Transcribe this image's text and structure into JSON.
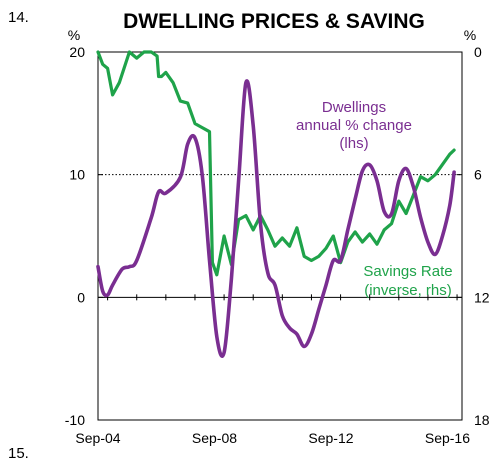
{
  "page": {
    "slide_number_top": "14.",
    "slide_number_bottom": "15."
  },
  "chart_data": {
    "type": "line",
    "title": "DWELLING PRICES & SAVING",
    "left_axis": {
      "unit": "%",
      "ylim": [
        -10,
        20
      ],
      "ticks": [
        20,
        10,
        0,
        -10
      ],
      "tick_labels": [
        "20",
        "10",
        "0",
        "-10"
      ]
    },
    "right_axis": {
      "unit": "%",
      "inverted": true,
      "ylim": [
        0,
        18
      ],
      "ticks": [
        0,
        6,
        12,
        18
      ],
      "tick_labels": [
        "0",
        "6",
        "12",
        "18"
      ]
    },
    "x_axis": {
      "xlim": [
        2004.67,
        2017.17
      ],
      "tick_labels": [
        "Sep-04",
        "Sep-08",
        "Sep-12",
        "Sep-16"
      ],
      "tick_positions": [
        2004.67,
        2008.67,
        2012.67,
        2016.67
      ]
    },
    "reference_line": {
      "axis": "left",
      "value": 10,
      "style": "dotted"
    },
    "series": [
      {
        "name": "Dwellings annual % change (lhs)",
        "label_lines": [
          "Dwellings",
          "annual % change",
          "(lhs)"
        ],
        "axis": "left",
        "color": "#7a2e91",
        "x": [
          2004.67,
          2004.83,
          2005.0,
          2005.17,
          2005.5,
          2005.75,
          2006.0,
          2006.5,
          2006.75,
          2007.0,
          2007.5,
          2007.75,
          2008.0,
          2008.25,
          2008.5,
          2008.75,
          2009.0,
          2009.25,
          2009.5,
          2009.75,
          2010.0,
          2010.25,
          2010.5,
          2010.75,
          2011.0,
          2011.25,
          2011.5,
          2011.75,
          2012.0,
          2012.25,
          2012.5,
          2012.75,
          2013.0,
          2013.25,
          2013.5,
          2013.75,
          2014.0,
          2014.25,
          2014.5,
          2014.75,
          2015.0,
          2015.25,
          2015.5,
          2015.75,
          2016.0,
          2016.25,
          2016.5,
          2016.75,
          2016.9
        ],
        "values": [
          2.5,
          0.5,
          0.2,
          1.0,
          2.3,
          2.5,
          3.0,
          6.5,
          8.6,
          8.5,
          9.8,
          12.5,
          13.0,
          10.0,
          3.0,
          -3.2,
          -4.5,
          1.5,
          9.5,
          17.5,
          14.0,
          6.0,
          2.0,
          1.0,
          -1.5,
          -2.5,
          -3.0,
          -4.0,
          -3.0,
          -1.0,
          1.0,
          3.0,
          3.0,
          5.5,
          8.0,
          10.3,
          10.8,
          9.5,
          7.0,
          6.8,
          9.5,
          10.5,
          9.0,
          6.5,
          4.5,
          3.5,
          5.0,
          7.5,
          10.2
        ]
      },
      {
        "name": "Savings Rate (inverse, rhs)",
        "label_lines": [
          "Savings Rate",
          "(inverse, rhs)"
        ],
        "axis": "right",
        "color": "#1fa34a",
        "x": [
          2004.67,
          2004.83,
          2005.0,
          2005.17,
          2005.4,
          2005.75,
          2006.0,
          2006.25,
          2006.5,
          2006.7,
          2006.75,
          2006.85,
          2007.0,
          2007.25,
          2007.5,
          2007.75,
          2008.0,
          2008.25,
          2008.5,
          2008.6,
          2008.75,
          2009.0,
          2009.25,
          2009.5,
          2009.75,
          2010.0,
          2010.25,
          2010.5,
          2010.75,
          2011.0,
          2011.25,
          2011.5,
          2011.75,
          2012.0,
          2012.25,
          2012.5,
          2012.75,
          2013.0,
          2013.25,
          2013.5,
          2013.75,
          2014.0,
          2014.25,
          2014.5,
          2014.75,
          2015.0,
          2015.25,
          2015.5,
          2015.75,
          2016.0,
          2016.25,
          2016.5,
          2016.75,
          2016.9
        ],
        "values": [
          0.0,
          0.6,
          0.8,
          2.1,
          1.5,
          0.0,
          0.3,
          0.0,
          0.0,
          0.2,
          1.2,
          1.2,
          1.0,
          1.5,
          2.4,
          2.5,
          3.5,
          3.7,
          3.9,
          10.3,
          10.9,
          9.0,
          10.4,
          8.2,
          8.0,
          8.7,
          8.0,
          8.7,
          9.5,
          9.1,
          9.5,
          8.6,
          10.0,
          10.2,
          10.0,
          9.6,
          9.0,
          10.3,
          9.3,
          8.8,
          9.3,
          8.9,
          9.4,
          8.7,
          8.4,
          7.3,
          7.9,
          7.0,
          6.1,
          6.3,
          6.0,
          5.5,
          5.0,
          4.8
        ]
      }
    ]
  }
}
